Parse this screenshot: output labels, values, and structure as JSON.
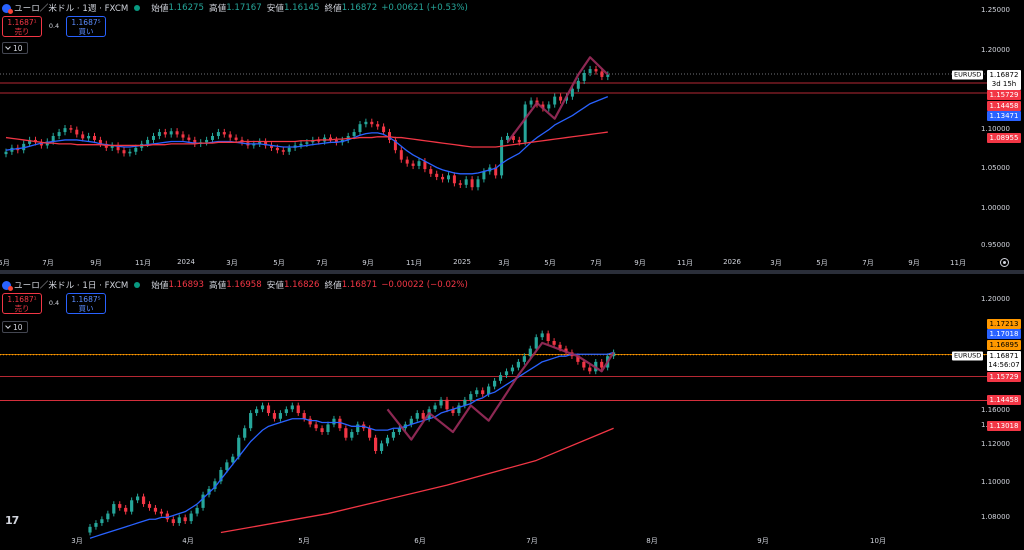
{
  "colors": {
    "up": "#26a69a",
    "down": "#f23645",
    "ma_fast": "#2962ff",
    "ma_slow": "#f23645",
    "zigzag": "#9c2c5c",
    "orange": "#ff9800"
  },
  "weekly": {
    "header": {
      "symbol": "ユーロ／米ドル · 1週 · FXCM",
      "o_label": "始値",
      "o": "1.16275",
      "h_label": "高値",
      "h": "1.17167",
      "l_label": "安値",
      "l": "1.16145",
      "c_label": "終値",
      "c": "1.16872",
      "chg": "+0.00621 (+0.53%)"
    },
    "trade": {
      "sell_price": "1.1687¹",
      "sell_label": "売り",
      "spread": "0.4",
      "buy_price": "1.1687⁵",
      "buy_label": "買い",
      "lots": "10"
    },
    "y_ticks": [
      "1.25000",
      "1.20000",
      "1.10000",
      "1.05000",
      "1.00000",
      "0.95000"
    ],
    "x_ticks": [
      "5月",
      "7月",
      "9月",
      "11月",
      "2024",
      "3月",
      "5月",
      "7月",
      "9月",
      "11月",
      "2025",
      "3月",
      "5月",
      "7月",
      "9月",
      "11月",
      "2026",
      "3月",
      "5月",
      "7月",
      "9月",
      "11月"
    ],
    "symbol_tag": "EURUSD",
    "current_price": "1.16872",
    "countdown": "3d 15h",
    "price_labels": [
      "1.15729",
      "1.14458",
      "1.13471",
      "1.08955"
    ]
  },
  "daily": {
    "header": {
      "symbol": "ユーロ／米ドル · 1日 · FXCM",
      "o_label": "始値",
      "o": "1.16893",
      "h_label": "高値",
      "h": "1.16958",
      "l_label": "安値",
      "l": "1.16826",
      "c_label": "終値",
      "c": "1.16871",
      "chg": "−0.00022 (−0.02%)"
    },
    "trade": {
      "sell_price": "1.1687¹",
      "sell_label": "売り",
      "spread": "0.4",
      "buy_price": "1.1687⁵",
      "buy_label": "買い",
      "lots": "10"
    },
    "y_ticks": [
      "1.20000",
      "1.16000",
      "1.14000",
      "1.12000",
      "1.10000",
      "1.08000"
    ],
    "x_ticks": [
      "3月",
      "4月",
      "5月",
      "6月",
      "7月",
      "8月",
      "9月",
      "10月"
    ],
    "symbol_tag": "EURUSD",
    "current_price": "1.16871",
    "countdown": "14:56:07",
    "price_labels": [
      "1.17213",
      "1.17018",
      "1.16895",
      "1.15729",
      "1.14458",
      "1.13018"
    ]
  },
  "chart_data": [
    {
      "type": "candlestick",
      "title": "ユーロ／米ドル · 1週 · FXCM",
      "ylim": [
        0.93,
        1.25
      ],
      "close": [
        1.07,
        1.075,
        1.072,
        1.08,
        1.085,
        1.082,
        1.078,
        1.083,
        1.09,
        1.095,
        1.1,
        1.098,
        1.092,
        1.087,
        1.09,
        1.085,
        1.08,
        1.075,
        1.078,
        1.072,
        1.068,
        1.07,
        1.075,
        1.08,
        1.085,
        1.09,
        1.095,
        1.092,
        1.096,
        1.092,
        1.088,
        1.085,
        1.08,
        1.082,
        1.085,
        1.09,
        1.095,
        1.092,
        1.088,
        1.085,
        1.082,
        1.078,
        1.08,
        1.083,
        1.078,
        1.075,
        1.072,
        1.07,
        1.075,
        1.078,
        1.08,
        1.082,
        1.085,
        1.083,
        1.088,
        1.085,
        1.082,
        1.085,
        1.09,
        1.095,
        1.105,
        1.108,
        1.105,
        1.102,
        1.095,
        1.085,
        1.072,
        1.06,
        1.055,
        1.052,
        1.058,
        1.048,
        1.042,
        1.038,
        1.035,
        1.04,
        1.03,
        1.028,
        1.035,
        1.025,
        1.035,
        1.045,
        1.05,
        1.04,
        1.085,
        1.09,
        1.085,
        1.082,
        1.13,
        1.135,
        1.13,
        1.125,
        1.13,
        1.14,
        1.135,
        1.14,
        1.15,
        1.16,
        1.17,
        1.175,
        1.172,
        1.165,
        1.168
      ],
      "series": [
        {
          "name": "ma_fast",
          "values": [
            1.072,
            1.073,
            1.074,
            1.075,
            1.077,
            1.079,
            1.081,
            1.082,
            1.083,
            1.084,
            1.085,
            1.085,
            1.085,
            1.084,
            1.083,
            1.082,
            1.08,
            1.079,
            1.078,
            1.077,
            1.076,
            1.076,
            1.077,
            1.078,
            1.079,
            1.08,
            1.081,
            1.082,
            1.083,
            1.083,
            1.083,
            1.082,
            1.081,
            1.081,
            1.081,
            1.082,
            1.083,
            1.083,
            1.083,
            1.082,
            1.081,
            1.08,
            1.08,
            1.08,
            1.079,
            1.078,
            1.077,
            1.076,
            1.076,
            1.076,
            1.077,
            1.078,
            1.079,
            1.08,
            1.081,
            1.082,
            1.082,
            1.083,
            1.085,
            1.088,
            1.091,
            1.093,
            1.094,
            1.094,
            1.092,
            1.088,
            1.083,
            1.077,
            1.071,
            1.066,
            1.062,
            1.058,
            1.054,
            1.05,
            1.047,
            1.045,
            1.043,
            1.042,
            1.042,
            1.042,
            1.043,
            1.045,
            1.047,
            1.049,
            1.055,
            1.06,
            1.064,
            1.068,
            1.075,
            1.082,
            1.088,
            1.093,
            1.098,
            1.104,
            1.108,
            1.112,
            1.116,
            1.121,
            1.126,
            1.131,
            1.134,
            1.137,
            1.14
          ]
        },
        {
          "name": "ma_slow",
          "values": [
            1.088,
            1.087,
            1.086,
            1.085,
            1.084,
            1.083,
            1.082,
            1.081,
            1.081,
            1.08,
            1.08,
            1.08,
            1.079,
            1.079,
            1.079,
            1.079,
            1.079,
            1.078,
            1.078,
            1.078,
            1.078,
            1.078,
            1.078,
            1.078,
            1.078,
            1.079,
            1.079,
            1.079,
            1.08,
            1.08,
            1.08,
            1.08,
            1.08,
            1.081,
            1.081,
            1.081,
            1.082,
            1.082,
            1.082,
            1.082,
            1.083,
            1.083,
            1.083,
            1.083,
            1.083,
            1.083,
            1.083,
            1.083,
            1.083,
            1.083,
            1.084,
            1.084,
            1.084,
            1.085,
            1.085,
            1.085,
            1.086,
            1.086,
            1.087,
            1.087,
            1.088,
            1.088,
            1.088,
            1.089,
            1.089,
            1.089,
            1.088,
            1.088,
            1.087,
            1.086,
            1.085,
            1.084,
            1.083,
            1.082,
            1.081,
            1.08,
            1.079,
            1.078,
            1.077,
            1.076,
            1.076,
            1.076,
            1.076,
            1.076,
            1.077,
            1.078,
            1.079,
            1.08,
            1.081,
            1.082,
            1.083,
            1.084,
            1.085,
            1.086,
            1.087,
            1.088,
            1.089,
            1.09,
            1.091,
            1.092,
            1.093,
            1.094,
            1.095
          ]
        },
        {
          "name": "zigzag",
          "points": [
            [
              85,
              1.082
            ],
            [
              90,
              1.132
            ],
            [
              93,
              1.112
            ],
            [
              97,
              1.168
            ],
            [
              99,
              1.19
            ],
            [
              102,
              1.168
            ]
          ]
        }
      ],
      "hlines": [
        1.16872,
        1.15729,
        1.14458
      ]
    },
    {
      "type": "candlestick",
      "title": "ユーロ／米ドル · 1日 · FXCM",
      "ylim": [
        1.07,
        1.205
      ],
      "close": [
        1.078,
        1.08,
        1.082,
        1.085,
        1.09,
        1.088,
        1.086,
        1.092,
        1.094,
        1.09,
        1.088,
        1.086,
        1.085,
        1.082,
        1.08,
        1.083,
        1.081,
        1.085,
        1.088,
        1.095,
        1.098,
        1.102,
        1.108,
        1.112,
        1.115,
        1.125,
        1.13,
        1.138,
        1.14,
        1.142,
        1.138,
        1.135,
        1.138,
        1.14,
        1.142,
        1.138,
        1.135,
        1.132,
        1.13,
        1.128,
        1.132,
        1.135,
        1.13,
        1.125,
        1.128,
        1.132,
        1.13,
        1.125,
        1.118,
        1.122,
        1.125,
        1.128,
        1.13,
        1.132,
        1.135,
        1.138,
        1.135,
        1.14,
        1.142,
        1.145,
        1.14,
        1.138,
        1.142,
        1.145,
        1.148,
        1.15,
        1.148,
        1.152,
        1.155,
        1.158,
        1.16,
        1.162,
        1.165,
        1.168,
        1.172,
        1.178,
        1.18,
        1.176,
        1.174,
        1.172,
        1.17,
        1.168,
        1.165,
        1.162,
        1.16,
        1.165,
        1.162,
        1.168,
        1.17
      ],
      "series": [
        {
          "name": "ma_fast",
          "values": [
            1.072,
            1.073,
            1.074,
            1.075,
            1.076,
            1.077,
            1.078,
            1.079,
            1.08,
            1.081,
            1.082,
            1.082,
            1.083,
            1.083,
            1.084,
            1.085,
            1.086,
            1.088,
            1.09,
            1.093,
            1.096,
            1.099,
            1.103,
            1.107,
            1.111,
            1.115,
            1.119,
            1.123,
            1.126,
            1.129,
            1.131,
            1.132,
            1.133,
            1.134,
            1.135,
            1.135,
            1.135,
            1.134,
            1.134,
            1.133,
            1.133,
            1.133,
            1.133,
            1.132,
            1.131,
            1.131,
            1.131,
            1.13,
            1.129,
            1.129,
            1.129,
            1.13,
            1.13,
            1.131,
            1.132,
            1.133,
            1.134,
            1.135,
            1.136,
            1.138,
            1.139,
            1.14,
            1.141,
            1.142,
            1.143,
            1.145,
            1.146,
            1.148,
            1.149,
            1.151,
            1.153,
            1.155,
            1.157,
            1.159,
            1.161,
            1.163,
            1.165,
            1.166,
            1.167,
            1.168,
            1.168,
            1.169,
            1.169,
            1.169,
            1.169,
            1.169,
            1.169,
            1.169,
            1.17
          ]
        },
        {
          "name": "ma_slow",
          "points": [
            [
              22,
              1.075
            ],
            [
              40,
              1.085
            ],
            [
              60,
              1.1
            ],
            [
              75,
              1.113
            ],
            [
              88,
              1.13
            ]
          ]
        },
        {
          "name": "zigzag",
          "points": [
            [
              50,
              1.14
            ],
            [
              54,
              1.124
            ],
            [
              57,
              1.138
            ],
            [
              61,
              1.128
            ],
            [
              64,
              1.142
            ],
            [
              67,
              1.134
            ],
            [
              72,
              1.158
            ],
            [
              76,
              1.175
            ],
            [
              82,
              1.168
            ],
            [
              86,
              1.16
            ],
            [
              88,
              1.17
            ]
          ]
        }
      ],
      "hlines": [
        1.16895,
        1.16871,
        1.15729,
        1.14458
      ]
    }
  ]
}
